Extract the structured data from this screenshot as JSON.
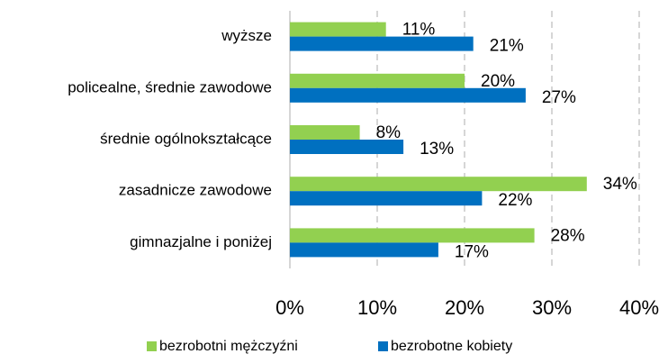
{
  "chart_data": {
    "type": "hbar",
    "categories": [
      "wyższe",
      "policealne, średnie zawodowe",
      "średnie ogólnokształcące",
      "zasadnicze zawodowe",
      "gimnazjalne i poniżej"
    ],
    "series": [
      {
        "name": "bezrobotni mężczyźni",
        "color": "#92d050",
        "values": [
          11,
          20,
          8,
          34,
          28
        ],
        "value_labels": [
          "11%",
          "20%",
          "8%",
          "34%",
          "28%"
        ]
      },
      {
        "name": "bezrobotne kobiety",
        "color": "#0070c0",
        "values": [
          21,
          27,
          13,
          22,
          17
        ],
        "value_labels": [
          "21%",
          "27%",
          "13%",
          "22%",
          "17%"
        ]
      }
    ],
    "xlim": [
      0,
      40
    ],
    "xticks": [
      {
        "value": 0,
        "label": "0%"
      },
      {
        "value": 10,
        "label": "10%"
      },
      {
        "value": 20,
        "label": "20%"
      },
      {
        "value": 30,
        "label": "30%"
      },
      {
        "value": 40,
        "label": "40%"
      }
    ],
    "grid": true,
    "legend": "bottom"
  }
}
